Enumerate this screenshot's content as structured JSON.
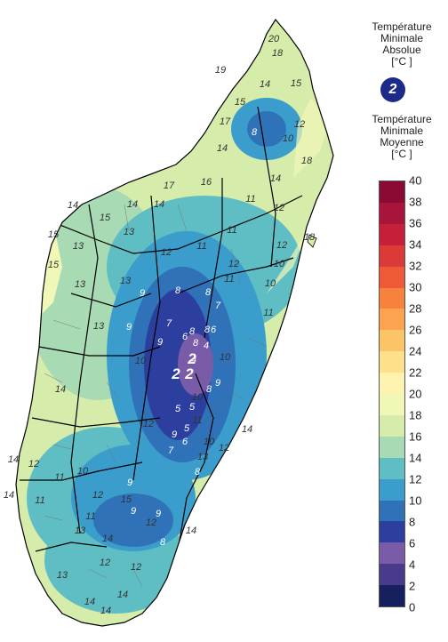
{
  "legend": {
    "absolute_title": [
      "Température",
      "Minimale",
      "Absolue",
      "[°C ]"
    ],
    "absolute_value": "2",
    "mean_title": [
      "Température",
      "Minimale",
      "Moyenne",
      "[°C ]"
    ],
    "ticks": [
      "40",
      "38",
      "36",
      "34",
      "32",
      "30",
      "28",
      "26",
      "24",
      "22",
      "20",
      "18",
      "16",
      "14",
      "12",
      "10",
      "8",
      "6",
      "4",
      "2",
      "0"
    ],
    "bands": [
      {
        "range": [
          38,
          40
        ],
        "color": "#8b0a34"
      },
      {
        "range": [
          36,
          38
        ],
        "color": "#a8143a"
      },
      {
        "range": [
          34,
          36
        ],
        "color": "#c51f3a"
      },
      {
        "range": [
          32,
          34
        ],
        "color": "#dc3a36"
      },
      {
        "range": [
          30,
          32
        ],
        "color": "#ee5a38"
      },
      {
        "range": [
          28,
          30
        ],
        "color": "#f6823e"
      },
      {
        "range": [
          26,
          28
        ],
        "color": "#fba34f"
      },
      {
        "range": [
          24,
          26
        ],
        "color": "#fdc467"
      },
      {
        "range": [
          22,
          24
        ],
        "color": "#fee08a"
      },
      {
        "range": [
          20,
          22
        ],
        "color": "#fff3b0"
      },
      {
        "range": [
          18,
          20
        ],
        "color": "#f1f7b7"
      },
      {
        "range": [
          16,
          18
        ],
        "color": "#d5ecab"
      },
      {
        "range": [
          14,
          16
        ],
        "color": "#a8dab4"
      },
      {
        "range": [
          12,
          14
        ],
        "color": "#5fbec4"
      },
      {
        "range": [
          10,
          12
        ],
        "color": "#3a9dcb"
      },
      {
        "range": [
          8,
          10
        ],
        "color": "#2f72b8"
      },
      {
        "range": [
          6,
          8
        ],
        "color": "#2d3f9e"
      },
      {
        "range": [
          4,
          6
        ],
        "color": "#7a5ba8"
      },
      {
        "range": [
          2,
          4
        ],
        "color": "#4a3a8c"
      },
      {
        "range": [
          0,
          2
        ],
        "color": "#16205e"
      }
    ]
  },
  "map": {
    "labels": [
      "20",
      "18",
      "19",
      "15",
      "14",
      "15",
      "12",
      "8",
      "10",
      "17",
      "14",
      "18",
      "14",
      "17",
      "16",
      "12",
      "15",
      "14",
      "14",
      "11",
      "12",
      "14",
      "13",
      "11",
      "18",
      "15",
      "13",
      "12",
      "11",
      "12",
      "15",
      "13",
      "13",
      "11",
      "10",
      "10",
      "9",
      "8",
      "8",
      "11",
      "9",
      "7",
      "7",
      "8",
      "8",
      "6",
      "13",
      "6",
      "4",
      "9",
      "8",
      "4",
      "10",
      "10",
      "8",
      "2",
      "2",
      "2",
      "9",
      "14",
      "10",
      "5",
      "5",
      "11",
      "14",
      "12",
      "5",
      "9",
      "10",
      "14",
      "6",
      "13",
      "7",
      "12",
      "8",
      "12",
      "14",
      "11",
      "11",
      "9",
      "12",
      "10",
      "9",
      "15",
      "11",
      "12",
      "9",
      "13",
      "14",
      "8",
      "14",
      "12",
      "13",
      "12",
      "14",
      "14",
      "14"
    ]
  }
}
